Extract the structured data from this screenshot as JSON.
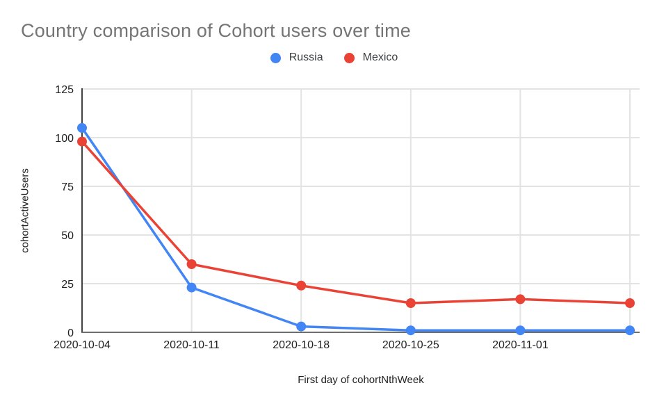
{
  "chart_data": {
    "type": "line",
    "title": "Country comparison of Cohort users over time",
    "xlabel": "First day of cohortNthWeek",
    "ylabel": "cohortActiveUsers",
    "categories": [
      "2020-10-04",
      "2020-10-11",
      "2020-10-18",
      "2020-10-25",
      "2020-11-01",
      ""
    ],
    "series": [
      {
        "name": "Russia",
        "color": "#4285F4",
        "values": [
          105,
          23,
          3,
          1,
          1,
          1
        ]
      },
      {
        "name": "Mexico",
        "color": "#EA4335",
        "values": [
          98,
          35,
          24,
          15,
          17,
          15
        ]
      }
    ],
    "y_ticks": [
      0,
      25,
      50,
      75,
      100,
      125
    ],
    "ylim": [
      0,
      125
    ],
    "grid": true,
    "legend_position": "top",
    "colors": {
      "gridline": "#e3e3e3",
      "y_axis_line": "#424242",
      "x_axis_line": "#6e6e6e",
      "tick_label": "#212121",
      "title": "#757575"
    }
  }
}
